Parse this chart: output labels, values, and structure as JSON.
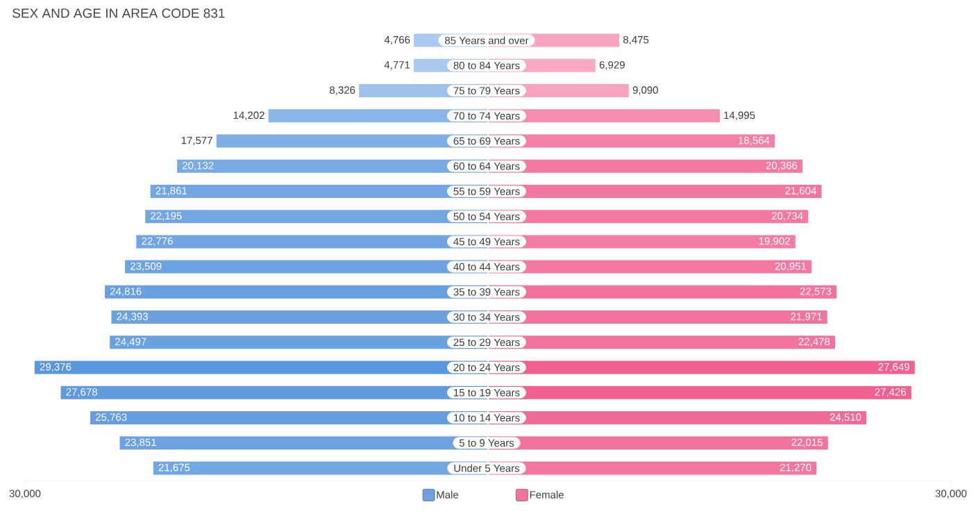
{
  "chart_data": [
    {
      "type": "bar",
      "orientation": "horizontal",
      "title": "SEX AND AGE IN AREA CODE 831",
      "categories": [
        "85 Years and over",
        "80 to 84 Years",
        "75 to 79 Years",
        "70 to 74 Years",
        "65 to 69 Years",
        "60 to 64 Years",
        "55 to 59 Years",
        "50 to 54 Years",
        "45 to 49 Years",
        "40 to 44 Years",
        "35 to 39 Years",
        "30 to 34 Years",
        "25 to 29 Years",
        "20 to 24 Years",
        "15 to 19 Years",
        "10 to 14 Years",
        "5 to 9 Years",
        "Under 5 Years"
      ],
      "series": [
        {
          "name": "Male",
          "color": "#6ca2e2",
          "values": [
            4766,
            4771,
            8326,
            14202,
            17577,
            20132,
            21861,
            22195,
            22776,
            23509,
            24816,
            24393,
            24497,
            29376,
            27678,
            25763,
            23851,
            21675
          ],
          "value_labels": [
            "4,766",
            "4,771",
            "8,326",
            "14,202",
            "17,577",
            "20,132",
            "21,861",
            "22,195",
            "22,776",
            "23,509",
            "24,816",
            "24,393",
            "24,497",
            "29,376",
            "27,678",
            "25,763",
            "23,851",
            "21,675"
          ],
          "colors": [
            "#a9c9ee",
            "#a9c9ee",
            "#9ec2ec",
            "#8bb6e8",
            "#80afe6",
            "#78aae4",
            "#73a6e3",
            "#72a6e3",
            "#70a4e2",
            "#6ea3e2",
            "#69a0e1",
            "#6ba1e1",
            "#6aa1e1",
            "#5b97de",
            "#609adf",
            "#669ee0",
            "#6ca2e2",
            "#73a7e3"
          ]
        }
      ],
      "xlim": [
        30000,
        0
      ],
      "xticks": [
        {
          "value": 30000,
          "label": "30,000"
        }
      ],
      "legend": "bottom"
    },
    {
      "type": "bar",
      "orientation": "horizontal",
      "series": [
        {
          "name": "Female",
          "color": "#f2749e",
          "values": [
            8475,
            6929,
            9090,
            14995,
            18564,
            20366,
            21604,
            20734,
            19902,
            20951,
            22573,
            21971,
            22478,
            27649,
            27426,
            24510,
            22015,
            21270
          ],
          "value_labels": [
            "8,475",
            "6,929",
            "9,090",
            "14,995",
            "18,564",
            "20,366",
            "21,604",
            "20,734",
            "19,902",
            "20,951",
            "22,573",
            "21,971",
            "22,478",
            "27,649",
            "27,426",
            "24,510",
            "22,015",
            "21,270"
          ],
          "colors": [
            "#f7a4c0",
            "#f8aac4",
            "#f7a2bf",
            "#f58db0",
            "#f380a7",
            "#f37aa2",
            "#f2769f",
            "#f379a1",
            "#f37ca3",
            "#f378a1",
            "#f2729d",
            "#f2749e",
            "#f2739d",
            "#f06090",
            "#f06191",
            "#f16b98",
            "#f2749e",
            "#f277a0"
          ]
        }
      ],
      "xlim": [
        0,
        30000
      ],
      "xticks": [
        {
          "value": 30000,
          "label": "30,000"
        }
      ],
      "tick_labels": "x",
      "legend": "bottom"
    }
  ]
}
